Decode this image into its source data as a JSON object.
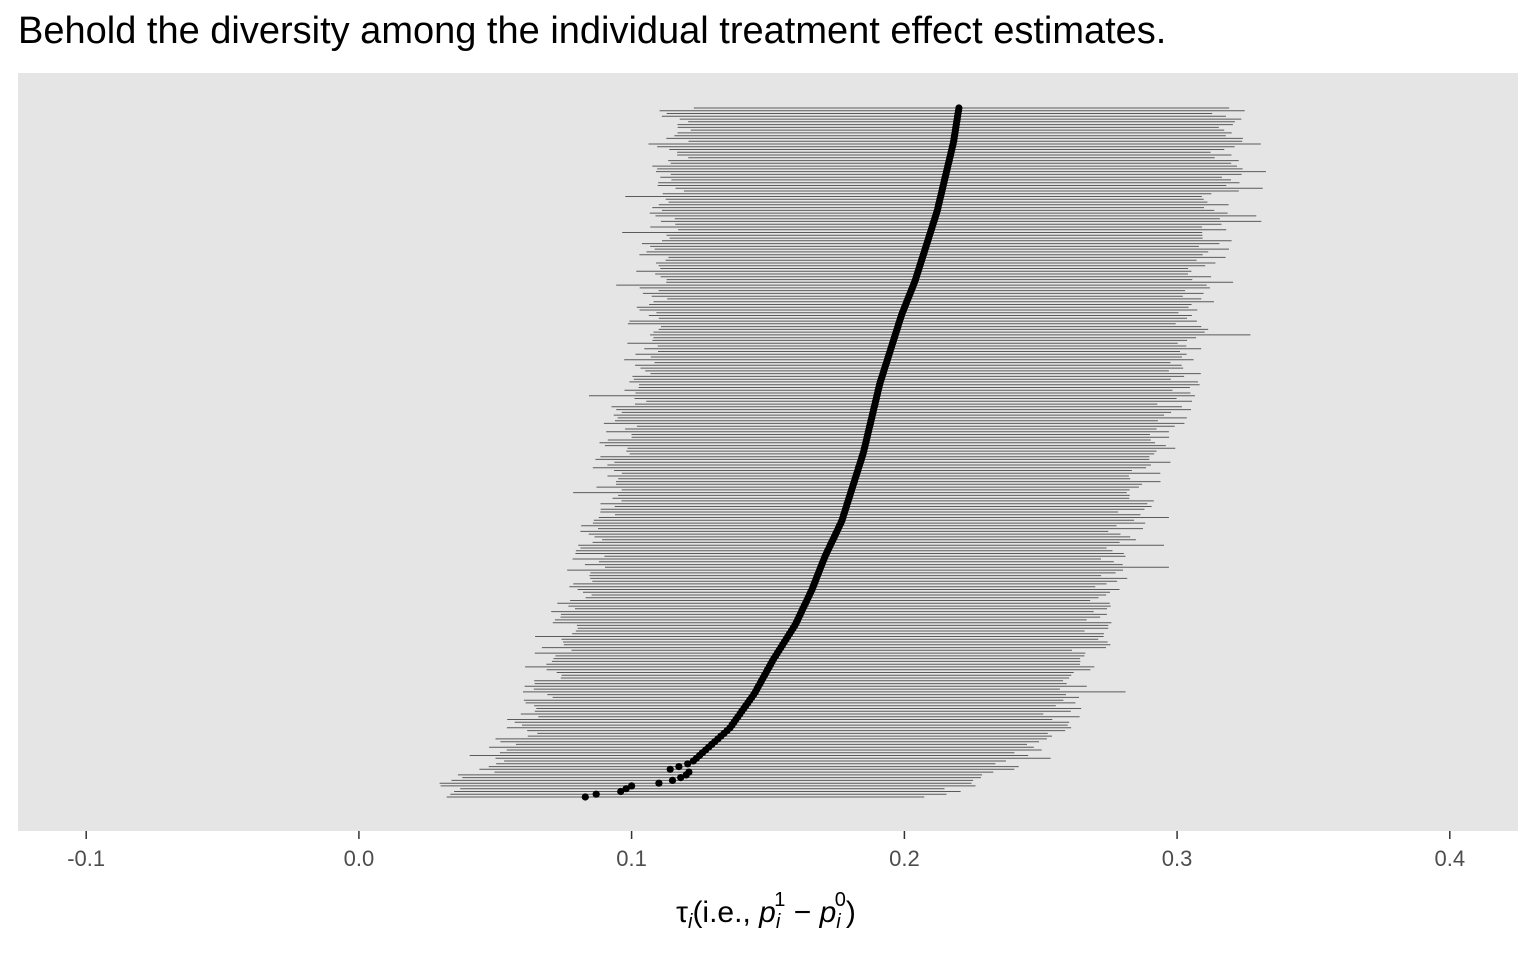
{
  "colors": {
    "panel_background": "#e5e5e5",
    "interval_line": "#5a5a5a",
    "point": "#000000",
    "axis_tick": "#333333",
    "tick_label": "#4d4d4d"
  },
  "chart_data": {
    "type": "scatter",
    "subtype": "ranked point estimates with horizontal intervals (caterpillar plot)",
    "title": "Behold the diversity among the individual treatment effect estimates.",
    "xlabel": {
      "tau": "τ",
      "tau_sub": "i",
      "paren_open": "(i.e., ",
      "p1": "p",
      "p1_sub": "i",
      "p1_sup": "1",
      "minus": " − ",
      "p0": "p",
      "p0_sub": "i",
      "p0_sup": "0",
      "paren_close": ")"
    },
    "ylabel": "",
    "xlim": [
      -0.125,
      0.425
    ],
    "x_ticks": [
      -0.1,
      0.0,
      0.1,
      0.2,
      0.3,
      0.4
    ],
    "x_tick_labels": [
      "-0.1",
      "0.0",
      "0.1",
      "0.2",
      "0.3",
      "0.4"
    ],
    "y_axis_shown": false,
    "grid": false,
    "legend": "none",
    "n_estimates": 250,
    "ordering": "ascending point estimate (bottom to top)",
    "quantile_profile": {
      "rank_fraction": [
        0.0,
        0.02,
        0.05,
        0.1,
        0.15,
        0.2,
        0.25,
        0.3,
        0.35,
        0.4,
        0.45,
        0.5,
        0.55,
        0.6,
        0.65,
        0.7,
        0.75,
        0.8,
        0.85,
        0.9,
        0.95,
        1.0
      ],
      "estimate": [
        0.083,
        0.098,
        0.122,
        0.136,
        0.145,
        0.152,
        0.16,
        0.166,
        0.171,
        0.177,
        0.181,
        0.185,
        0.188,
        0.191,
        0.195,
        0.199,
        0.204,
        0.208,
        0.212,
        0.215,
        0.218,
        0.22
      ],
      "lower": [
        0.03,
        0.035,
        0.05,
        0.06,
        0.065,
        0.07,
        0.075,
        0.08,
        0.085,
        0.088,
        0.091,
        0.094,
        0.097,
        0.1,
        0.104,
        0.106,
        0.108,
        0.11,
        0.112,
        0.113,
        0.115,
        0.117
      ],
      "upper": [
        0.21,
        0.225,
        0.24,
        0.255,
        0.262,
        0.267,
        0.271,
        0.276,
        0.279,
        0.282,
        0.287,
        0.293,
        0.298,
        0.302,
        0.305,
        0.307,
        0.31,
        0.313,
        0.315,
        0.317,
        0.319,
        0.32
      ]
    },
    "lowest_estimates": [
      0.083,
      0.087,
      0.096,
      0.098,
      0.1,
      0.11,
      0.115,
      0.118,
      0.12,
      0.121
    ]
  }
}
